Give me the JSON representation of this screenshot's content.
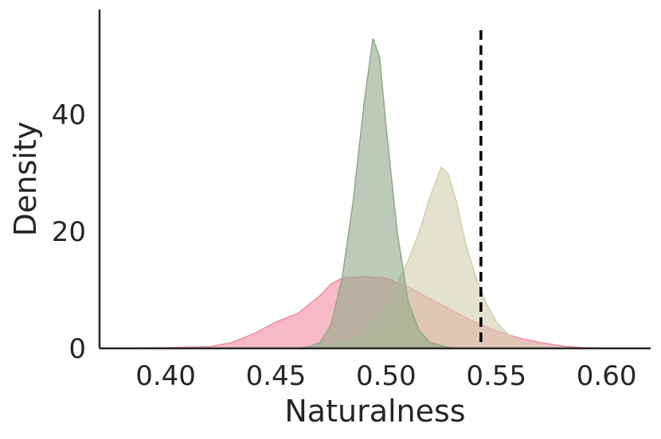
{
  "chart_data": {
    "type": "area",
    "subtype": "kde-density",
    "xlabel": "Naturalness",
    "ylabel": "Density",
    "xlim": [
      0.37,
      0.62
    ],
    "ylim": [
      0,
      58
    ],
    "x_ticks": [
      0.4,
      0.45,
      0.5,
      0.55,
      0.6
    ],
    "x_tick_labels": [
      "0.40",
      "0.45",
      "0.50",
      "0.55",
      "0.60"
    ],
    "y_ticks": [
      0,
      20,
      40
    ],
    "y_tick_labels": [
      "0",
      "20",
      "40"
    ],
    "grid": false,
    "legend": false,
    "reference_line": {
      "x": 0.543,
      "style": "dashed",
      "color": "#000000"
    },
    "series": [
      {
        "color": "#f08ca0",
        "points": [
          [
            0.38,
            0
          ],
          [
            0.4,
            0.1
          ],
          [
            0.42,
            0.3
          ],
          [
            0.43,
            1
          ],
          [
            0.44,
            2.5
          ],
          [
            0.45,
            4.5
          ],
          [
            0.46,
            6
          ],
          [
            0.465,
            7.5
          ],
          [
            0.47,
            9
          ],
          [
            0.475,
            11
          ],
          [
            0.48,
            12
          ],
          [
            0.49,
            12.3
          ],
          [
            0.5,
            12
          ],
          [
            0.51,
            10.5
          ],
          [
            0.52,
            8.5
          ],
          [
            0.53,
            6.5
          ],
          [
            0.54,
            4.5
          ],
          [
            0.55,
            3
          ],
          [
            0.56,
            1.8
          ],
          [
            0.57,
            1
          ],
          [
            0.58,
            0.4
          ],
          [
            0.59,
            0.1
          ],
          [
            0.6,
            0
          ]
        ]
      },
      {
        "color": "#d2cfae",
        "points": [
          [
            0.46,
            0
          ],
          [
            0.47,
            0.2
          ],
          [
            0.48,
            0.8
          ],
          [
            0.49,
            2.5
          ],
          [
            0.5,
            7
          ],
          [
            0.505,
            11
          ],
          [
            0.51,
            15
          ],
          [
            0.515,
            20
          ],
          [
            0.52,
            26
          ],
          [
            0.525,
            31
          ],
          [
            0.528,
            30
          ],
          [
            0.532,
            25
          ],
          [
            0.536,
            18
          ],
          [
            0.54,
            13
          ],
          [
            0.545,
            8
          ],
          [
            0.55,
            4.5
          ],
          [
            0.555,
            2.5
          ],
          [
            0.56,
            1.2
          ],
          [
            0.57,
            0.4
          ],
          [
            0.58,
            0.1
          ],
          [
            0.59,
            0
          ]
        ]
      },
      {
        "color": "#8fa888",
        "points": [
          [
            0.46,
            0
          ],
          [
            0.465,
            0.3
          ],
          [
            0.47,
            1
          ],
          [
            0.475,
            4
          ],
          [
            0.48,
            12
          ],
          [
            0.485,
            25
          ],
          [
            0.49,
            42
          ],
          [
            0.494,
            53
          ],
          [
            0.497,
            50
          ],
          [
            0.5,
            38
          ],
          [
            0.505,
            20
          ],
          [
            0.51,
            8
          ],
          [
            0.515,
            3
          ],
          [
            0.52,
            1
          ],
          [
            0.53,
            0
          ]
        ]
      }
    ]
  }
}
